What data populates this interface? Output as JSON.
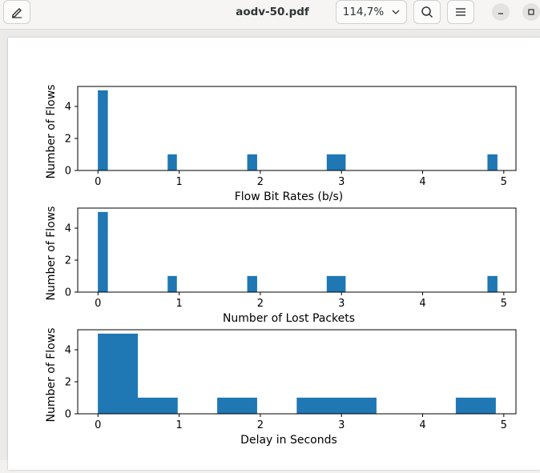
{
  "titlebar": {
    "title": "aodv-50.pdf",
    "zoom": "114,7%"
  },
  "icons": {
    "annotate": "pencil-annotate-icon",
    "zoom_menu": "chevron-down-icon",
    "search": "search-icon",
    "menu": "hamburger-menu-icon",
    "minimize": "minimize-icon",
    "maximize": "maximize-icon"
  },
  "chart_data": [
    {
      "type": "bar",
      "title": "",
      "xlabel": "Flow Bit Rates (b/s)",
      "ylabel": "Number of Flows",
      "xlim": [
        -0.25,
        5.15
      ],
      "ylim": [
        0,
        5.25
      ],
      "xticks": [
        0,
        1,
        2,
        3,
        4,
        5
      ],
      "yticks": [
        0,
        2,
        4
      ],
      "bars": [
        {
          "x0": 0.0,
          "x1": 0.12,
          "value": 5
        },
        {
          "x0": 0.86,
          "x1": 0.97,
          "value": 1
        },
        {
          "x0": 1.84,
          "x1": 1.96,
          "value": 1
        },
        {
          "x0": 2.82,
          "x1": 3.05,
          "value": 1
        },
        {
          "x0": 4.8,
          "x1": 4.92,
          "value": 1
        }
      ]
    },
    {
      "type": "bar",
      "title": "",
      "xlabel": "Number of Lost Packets",
      "ylabel": "Number of Flows",
      "xlim": [
        -0.25,
        5.15
      ],
      "ylim": [
        0,
        5.25
      ],
      "xticks": [
        0,
        1,
        2,
        3,
        4,
        5
      ],
      "yticks": [
        0,
        2,
        4
      ],
      "bars": [
        {
          "x0": 0.0,
          "x1": 0.12,
          "value": 5
        },
        {
          "x0": 0.86,
          "x1": 0.97,
          "value": 1
        },
        {
          "x0": 1.84,
          "x1": 1.96,
          "value": 1
        },
        {
          "x0": 2.82,
          "x1": 3.05,
          "value": 1
        },
        {
          "x0": 4.8,
          "x1": 4.92,
          "value": 1
        }
      ]
    },
    {
      "type": "bar",
      "title": "",
      "xlabel": "Delay in Seconds",
      "ylabel": "Number of Flows",
      "xlim": [
        -0.25,
        5.15
      ],
      "ylim": [
        0,
        5.25
      ],
      "xticks": [
        0,
        1,
        2,
        3,
        4,
        5
      ],
      "yticks": [
        0,
        2,
        4
      ],
      "bars": [
        {
          "x0": 0.0,
          "x1": 0.49,
          "value": 5
        },
        {
          "x0": 0.49,
          "x1": 0.98,
          "value": 1
        },
        {
          "x0": 1.47,
          "x1": 1.96,
          "value": 1
        },
        {
          "x0": 2.45,
          "x1": 3.43,
          "value": 1
        },
        {
          "x0": 4.41,
          "x1": 4.9,
          "value": 1
        }
      ]
    }
  ]
}
